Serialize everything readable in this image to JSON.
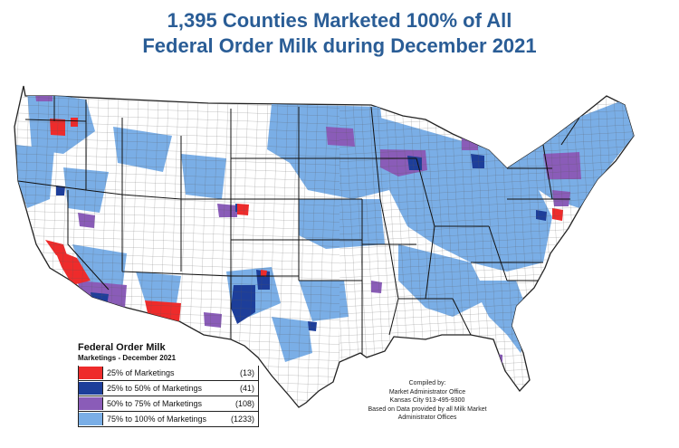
{
  "title": {
    "line1": "1,395 Counties Marketed 100% of All",
    "line2": "Federal Order Milk during December 2021"
  },
  "colors": {
    "title": "#2a5d96",
    "red": "#ee2b2b",
    "dark_blue": "#1d3e9a",
    "purple": "#8a5cb8",
    "light_blue": "#7aaee6",
    "county_line": "#4a4a4a"
  },
  "legend": {
    "title": "Federal Order Milk",
    "subtitle": "Marketings - December 2021",
    "items": [
      {
        "label": "25% of Marketings",
        "count": "(13)",
        "color": "#ee2b2b"
      },
      {
        "label": "25% to 50% of Marketings",
        "count": "(41)",
        "color": "#1d3e9a"
      },
      {
        "label": "50% to 75% of Marketings",
        "count": "(108)",
        "color": "#8a5cb8"
      },
      {
        "label": "75% to 100% of Marketings",
        "count": "(1233)",
        "color": "#7aaee6"
      }
    ]
  },
  "credit": {
    "line1": "Compiled by:",
    "line2": "Market Administrator Office",
    "line3": "Kansas City 913-495-9300",
    "line4": "Based on Data provided by all Milk Market",
    "line5": "Administrator Offices"
  }
}
